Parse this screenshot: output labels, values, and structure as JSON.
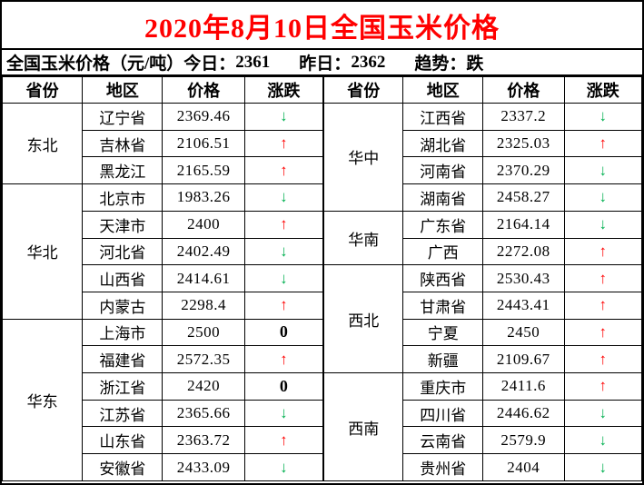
{
  "title": "2020年8月10日全国玉米价格",
  "summary": {
    "unit_label": "全国玉米价格（元/吨）",
    "today_label": "今日：",
    "today_value": "2361",
    "yesterday_label": "昨日：",
    "yesterday_value": "2362",
    "trend_label": "趋势：",
    "trend_value": "跌"
  },
  "columns": [
    "省份",
    "地区",
    "价格",
    "涨跌"
  ],
  "colors": {
    "title": "#ff0000",
    "up": "#ff0000",
    "down": "#00b050",
    "flat": "#000000",
    "border": "#000000",
    "text": "#000000"
  },
  "icons": {
    "up_arrow": "↑",
    "down_arrow": "↓",
    "flat": "0"
  },
  "left_sections": [
    {
      "region": "东北",
      "rows": [
        {
          "area": "辽宁省",
          "price": "2369.46",
          "change": "down"
        },
        {
          "area": "吉林省",
          "price": "2106.51",
          "change": "up"
        },
        {
          "area": "黑龙江",
          "price": "2165.59",
          "change": "up"
        }
      ]
    },
    {
      "region": "华北",
      "rows": [
        {
          "area": "北京市",
          "price": "1983.26",
          "change": "down"
        },
        {
          "area": "天津市",
          "price": "2400",
          "change": "up"
        },
        {
          "area": "河北省",
          "price": "2402.49",
          "change": "down"
        },
        {
          "area": "山西省",
          "price": "2414.61",
          "change": "down"
        },
        {
          "area": "内蒙古",
          "price": "2298.4",
          "change": "up"
        }
      ]
    },
    {
      "region": "华东",
      "rows": [
        {
          "area": "上海市",
          "price": "2500",
          "change": "flat"
        },
        {
          "area": "福建省",
          "price": "2572.35",
          "change": "up"
        },
        {
          "area": "浙江省",
          "price": "2420",
          "change": "flat"
        },
        {
          "area": "江苏省",
          "price": "2365.66",
          "change": "down"
        },
        {
          "area": "山东省",
          "price": "2363.72",
          "change": "up"
        },
        {
          "area": "安徽省",
          "price": "2433.09",
          "change": "down"
        }
      ]
    }
  ],
  "right_sections": [
    {
      "region": "华中",
      "rows": [
        {
          "area": "江西省",
          "price": "2337.2",
          "change": "down"
        },
        {
          "area": "湖北省",
          "price": "2325.03",
          "change": "up"
        },
        {
          "area": "河南省",
          "price": "2370.29",
          "change": "down"
        },
        {
          "area": "湖南省",
          "price": "2458.27",
          "change": "down"
        }
      ]
    },
    {
      "region": "华南",
      "rows": [
        {
          "area": "广东省",
          "price": "2164.14",
          "change": "down"
        },
        {
          "area": "广西",
          "price": "2272.08",
          "change": "up"
        }
      ]
    },
    {
      "region": "西北",
      "rows": [
        {
          "area": "陕西省",
          "price": "2530.43",
          "change": "up"
        },
        {
          "area": "甘肃省",
          "price": "2443.41",
          "change": "up"
        },
        {
          "area": "宁夏",
          "price": "2450",
          "change": "up"
        },
        {
          "area": "新疆",
          "price": "2109.67",
          "change": "up"
        }
      ]
    },
    {
      "region": "西南",
      "rows": [
        {
          "area": "重庆市",
          "price": "2411.6",
          "change": "up"
        },
        {
          "area": "四川省",
          "price": "2446.62",
          "change": "down"
        },
        {
          "area": "云南省",
          "price": "2579.9",
          "change": "down"
        },
        {
          "area": "贵州省",
          "price": "2404",
          "change": "down"
        }
      ]
    }
  ]
}
